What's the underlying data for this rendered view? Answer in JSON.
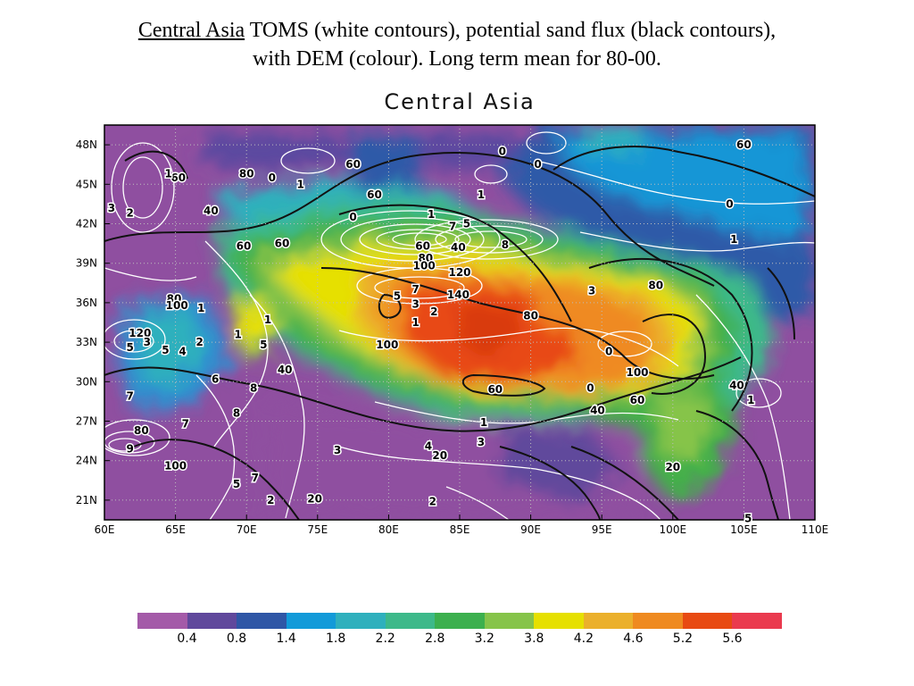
{
  "slide": {
    "title_underlined": "Central Asia",
    "title_rest": " TOMS (white contours), potential sand flux (black contours),",
    "title_line2": "with DEM (colour).  Long term mean for 80-00."
  },
  "map": {
    "title": "Central Asia",
    "lon_range": [
      60,
      110
    ],
    "lat_range": [
      19.5,
      49.5
    ],
    "lon_ticks": [
      "60E",
      "65E",
      "70E",
      "75E",
      "80E",
      "85E",
      "90E",
      "95E",
      "100E",
      "105E",
      "110E"
    ],
    "lat_ticks": [
      "48N",
      "45N",
      "42N",
      "39N",
      "36N",
      "33N",
      "30N",
      "27N",
      "24N",
      "21N"
    ],
    "grid": true,
    "contour_labels": [
      {
        "text": "60",
        "lon": 105.0,
        "lat": 48.0
      },
      {
        "text": "0",
        "lon": 88.0,
        "lat": 47.5
      },
      {
        "text": "0",
        "lon": 90.5,
        "lat": 46.5
      },
      {
        "text": "60",
        "lon": 77.5,
        "lat": 46.5
      },
      {
        "text": "80",
        "lon": 70.0,
        "lat": 45.8
      },
      {
        "text": "0",
        "lon": 71.8,
        "lat": 45.5
      },
      {
        "text": "60",
        "lon": 65.2,
        "lat": 45.5
      },
      {
        "text": "1",
        "lon": 64.5,
        "lat": 45.8
      },
      {
        "text": "1",
        "lon": 73.8,
        "lat": 45.0
      },
      {
        "text": "60",
        "lon": 79.0,
        "lat": 44.2
      },
      {
        "text": "1",
        "lon": 86.5,
        "lat": 44.2
      },
      {
        "text": "0",
        "lon": 104.0,
        "lat": 43.5
      },
      {
        "text": "3",
        "lon": 60.5,
        "lat": 43.2
      },
      {
        "text": "2",
        "lon": 61.8,
        "lat": 42.8
      },
      {
        "text": "40",
        "lon": 67.5,
        "lat": 43.0
      },
      {
        "text": "0",
        "lon": 77.5,
        "lat": 42.5
      },
      {
        "text": "1",
        "lon": 83.0,
        "lat": 42.7
      },
      {
        "text": "7",
        "lon": 84.5,
        "lat": 41.8
      },
      {
        "text": "5",
        "lon": 85.5,
        "lat": 42.0
      },
      {
        "text": "1",
        "lon": 104.3,
        "lat": 40.8
      },
      {
        "text": "60",
        "lon": 72.5,
        "lat": 40.5
      },
      {
        "text": "60",
        "lon": 69.8,
        "lat": 40.3
      },
      {
        "text": "8",
        "lon": 88.2,
        "lat": 40.4
      },
      {
        "text": "60",
        "lon": 82.4,
        "lat": 40.3
      },
      {
        "text": "40",
        "lon": 84.9,
        "lat": 40.2
      },
      {
        "text": "80",
        "lon": 82.6,
        "lat": 39.4
      },
      {
        "text": "100",
        "lon": 82.5,
        "lat": 38.8
      },
      {
        "text": "120",
        "lon": 85.0,
        "lat": 38.3
      },
      {
        "text": "80",
        "lon": 98.8,
        "lat": 37.3
      },
      {
        "text": "3",
        "lon": 94.3,
        "lat": 36.9
      },
      {
        "text": "7",
        "lon": 81.9,
        "lat": 37.0
      },
      {
        "text": "5",
        "lon": 80.6,
        "lat": 36.5
      },
      {
        "text": "140",
        "lon": 84.9,
        "lat": 36.6
      },
      {
        "text": "3",
        "lon": 81.9,
        "lat": 35.9
      },
      {
        "text": "80",
        "lon": 64.9,
        "lat": 36.3
      },
      {
        "text": "100",
        "lon": 65.1,
        "lat": 35.8
      },
      {
        "text": "1",
        "lon": 66.8,
        "lat": 35.6
      },
      {
        "text": "2",
        "lon": 83.2,
        "lat": 35.3
      },
      {
        "text": "80",
        "lon": 90.0,
        "lat": 35.0
      },
      {
        "text": "1",
        "lon": 71.5,
        "lat": 34.7
      },
      {
        "text": "1",
        "lon": 81.9,
        "lat": 34.5
      },
      {
        "text": "120",
        "lon": 62.5,
        "lat": 33.7
      },
      {
        "text": "1",
        "lon": 69.4,
        "lat": 33.6
      },
      {
        "text": "3",
        "lon": 63.0,
        "lat": 33.0
      },
      {
        "text": "2",
        "lon": 66.7,
        "lat": 33.0
      },
      {
        "text": "5",
        "lon": 71.2,
        "lat": 32.8
      },
      {
        "text": "5",
        "lon": 61.8,
        "lat": 32.6
      },
      {
        "text": "5",
        "lon": 64.3,
        "lat": 32.4
      },
      {
        "text": "4",
        "lon": 65.5,
        "lat": 32.3
      },
      {
        "text": "100",
        "lon": 79.9,
        "lat": 32.8
      },
      {
        "text": "0",
        "lon": 95.5,
        "lat": 32.3
      },
      {
        "text": "40",
        "lon": 72.7,
        "lat": 30.9
      },
      {
        "text": "100",
        "lon": 97.5,
        "lat": 30.7
      },
      {
        "text": "6",
        "lon": 67.8,
        "lat": 30.2
      },
      {
        "text": "8",
        "lon": 70.5,
        "lat": 29.5
      },
      {
        "text": "60",
        "lon": 87.5,
        "lat": 29.4
      },
      {
        "text": "0",
        "lon": 94.2,
        "lat": 29.5
      },
      {
        "text": "40",
        "lon": 104.5,
        "lat": 29.7
      },
      {
        "text": "7",
        "lon": 61.8,
        "lat": 28.9
      },
      {
        "text": "60",
        "lon": 97.5,
        "lat": 28.6
      },
      {
        "text": "1",
        "lon": 105.5,
        "lat": 28.6
      },
      {
        "text": "40",
        "lon": 94.7,
        "lat": 27.8
      },
      {
        "text": "8",
        "lon": 69.3,
        "lat": 27.6
      },
      {
        "text": "1",
        "lon": 86.7,
        "lat": 26.9
      },
      {
        "text": "7",
        "lon": 65.7,
        "lat": 26.8
      },
      {
        "text": "80",
        "lon": 62.6,
        "lat": 26.3
      },
      {
        "text": "3",
        "lon": 86.5,
        "lat": 25.4
      },
      {
        "text": "4",
        "lon": 82.8,
        "lat": 25.1
      },
      {
        "text": "9",
        "lon": 61.8,
        "lat": 24.9
      },
      {
        "text": "3",
        "lon": 76.4,
        "lat": 24.8
      },
      {
        "text": "20",
        "lon": 83.6,
        "lat": 24.4
      },
      {
        "text": "100",
        "lon": 65.0,
        "lat": 23.6
      },
      {
        "text": "20",
        "lon": 100.0,
        "lat": 23.5
      },
      {
        "text": "7",
        "lon": 70.6,
        "lat": 22.7
      },
      {
        "text": "5",
        "lon": 69.3,
        "lat": 22.2
      },
      {
        "text": "2",
        "lon": 71.7,
        "lat": 21.0
      },
      {
        "text": "20",
        "lon": 74.8,
        "lat": 21.1
      },
      {
        "text": "2",
        "lon": 83.1,
        "lat": 20.9
      },
      {
        "text": "5",
        "lon": 105.3,
        "lat": 19.6
      }
    ]
  },
  "colorbar": {
    "colors": [
      "#a45aa8",
      "#60489c",
      "#2f56a6",
      "#129ad9",
      "#2fb0bd",
      "#3db98a",
      "#3cb04e",
      "#86c44a",
      "#e6e000",
      "#ebb02c",
      "#ef8a20",
      "#e84a12",
      "#ea3a4e"
    ],
    "labels": [
      "0.4",
      "0.8",
      "1.4",
      "1.8",
      "2.2",
      "2.8",
      "3.2",
      "3.8",
      "4.2",
      "4.6",
      "5.2",
      "5.6"
    ]
  }
}
